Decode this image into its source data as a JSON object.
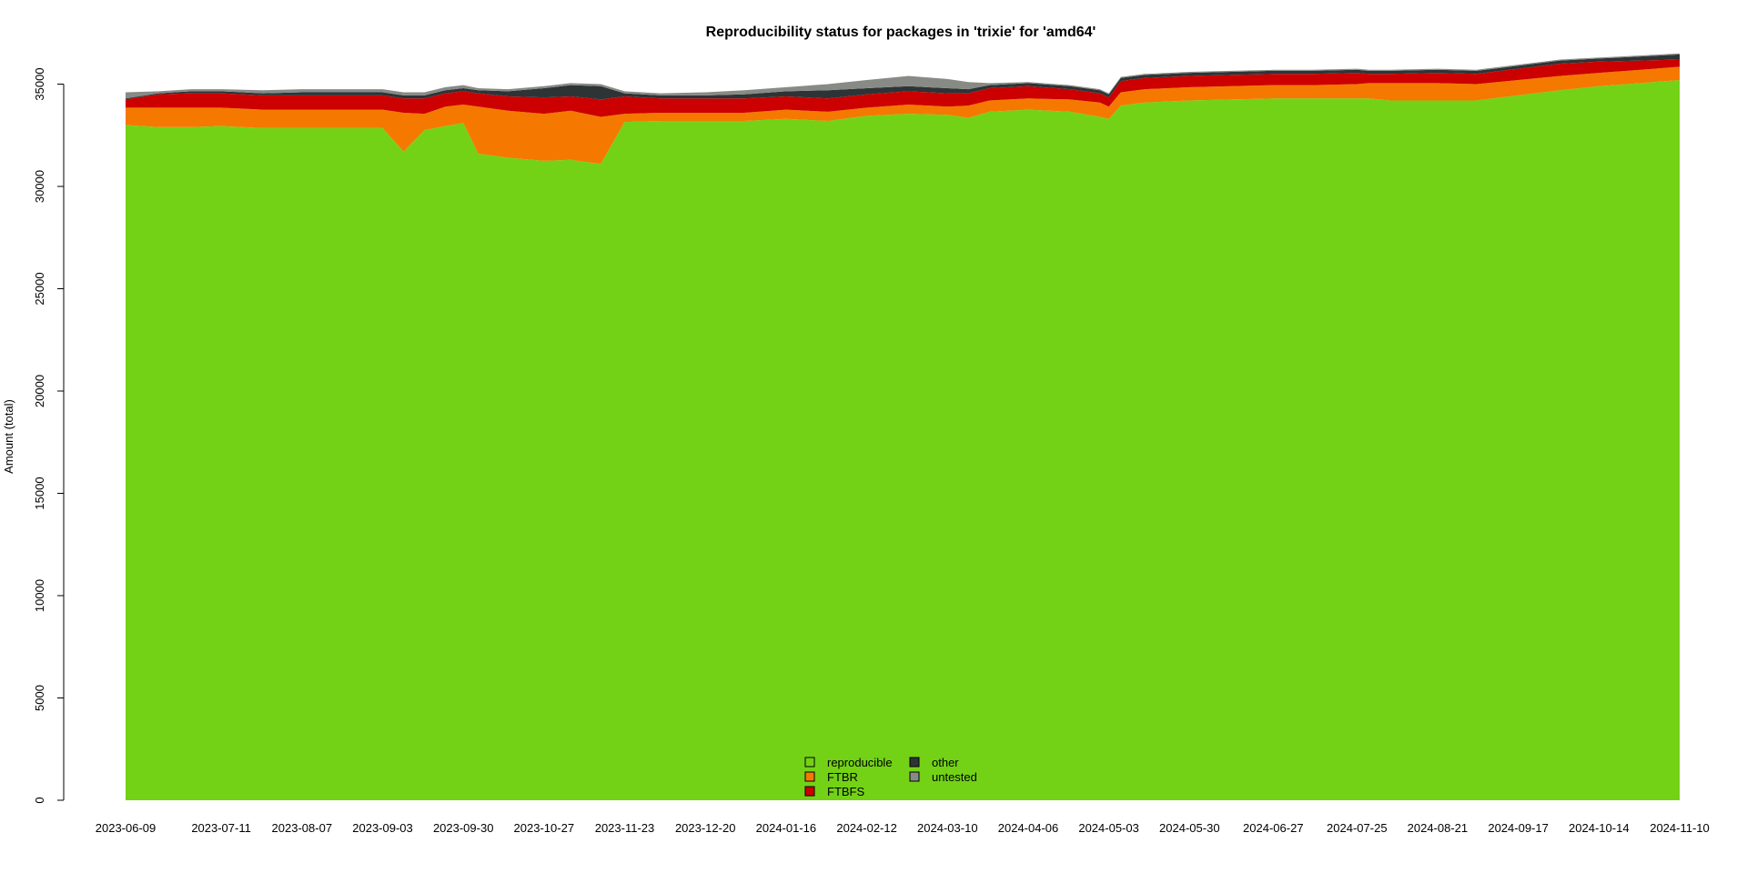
{
  "chart_data": {
    "type": "area",
    "stacked": true,
    "title": "Reproducibility status for packages in 'trixie' for 'amd64'",
    "xlabel": "",
    "ylabel": "Amount (total)",
    "ylim": [
      0,
      36000
    ],
    "yticks": [
      0,
      5000,
      10000,
      15000,
      20000,
      25000,
      30000,
      35000
    ],
    "xlim": [
      "2023-06-09",
      "2024-11-10"
    ],
    "xticks": [
      "2023-06-09",
      "2023-07-11",
      "2023-08-07",
      "2023-09-03",
      "2023-09-30",
      "2023-10-27",
      "2023-11-23",
      "2023-12-20",
      "2024-01-16",
      "2024-02-12",
      "2024-03-10",
      "2024-04-06",
      "2024-05-03",
      "2024-05-30",
      "2024-06-27",
      "2024-07-25",
      "2024-08-21",
      "2024-09-17",
      "2024-10-14",
      "2024-11-10"
    ],
    "grid": false,
    "legend_position": "bottom-center",
    "colors": {
      "reproducible": "#73d216",
      "FTBR": "#f57900",
      "FTBFS": "#cc0000",
      "other": "#2e3436",
      "untested": "#888a85"
    },
    "legend": [
      {
        "name": "reproducible",
        "color": "#73d216"
      },
      {
        "name": "FTBR",
        "color": "#f57900"
      },
      {
        "name": "FTBFS",
        "color": "#cc0000"
      },
      {
        "name": "other",
        "color": "#2e3436"
      },
      {
        "name": "untested",
        "color": "#888a85"
      }
    ],
    "x": [
      "2023-06-09",
      "2023-06-20",
      "2023-07-01",
      "2023-07-11",
      "2023-07-25",
      "2023-08-07",
      "2023-08-20",
      "2023-09-03",
      "2023-09-10",
      "2023-09-17",
      "2023-09-24",
      "2023-09-30",
      "2023-10-05",
      "2023-10-15",
      "2023-10-27",
      "2023-11-05",
      "2023-11-15",
      "2023-11-23",
      "2023-12-05",
      "2023-12-20",
      "2024-01-02",
      "2024-01-16",
      "2024-01-30",
      "2024-02-12",
      "2024-02-26",
      "2024-03-10",
      "2024-03-17",
      "2024-03-24",
      "2024-04-06",
      "2024-04-20",
      "2024-04-30",
      "2024-05-03",
      "2024-05-07",
      "2024-05-15",
      "2024-05-30",
      "2024-06-13",
      "2024-06-27",
      "2024-07-10",
      "2024-07-25",
      "2024-07-29",
      "2024-08-05",
      "2024-08-21",
      "2024-09-03",
      "2024-09-17",
      "2024-10-01",
      "2024-10-14",
      "2024-10-28",
      "2024-11-10"
    ],
    "series": [
      {
        "name": "reproducible",
        "values": [
          33000,
          32900,
          32900,
          32950,
          32850,
          32850,
          32850,
          32850,
          31700,
          32750,
          32950,
          33100,
          31600,
          31400,
          31250,
          31300,
          31100,
          33150,
          33200,
          33200,
          33200,
          33300,
          33200,
          33450,
          33550,
          33500,
          33350,
          33650,
          33750,
          33650,
          33400,
          33300,
          33950,
          34100,
          34200,
          34250,
          34300,
          34300,
          34300,
          34300,
          34200,
          34200,
          34200,
          34450,
          34700,
          34900,
          35050,
          35200
        ]
      },
      {
        "name": "FTBR",
        "values": [
          850,
          950,
          950,
          900,
          900,
          900,
          900,
          900,
          1900,
          800,
          950,
          900,
          2300,
          2300,
          2300,
          2400,
          2300,
          400,
          400,
          400,
          400,
          450,
          450,
          400,
          450,
          400,
          600,
          550,
          550,
          600,
          700,
          600,
          650,
          650,
          650,
          650,
          650,
          650,
          700,
          750,
          850,
          850,
          800,
          750,
          700,
          650,
          650,
          650
        ]
      },
      {
        "name": "FTBFS",
        "values": [
          400,
          650,
          700,
          700,
          700,
          700,
          700,
          700,
          700,
          750,
          650,
          650,
          650,
          700,
          800,
          700,
          850,
          850,
          700,
          700,
          700,
          650,
          650,
          650,
          650,
          650,
          600,
          600,
          600,
          500,
          450,
          450,
          550,
          550,
          550,
          550,
          550,
          550,
          550,
          450,
          450,
          500,
          500,
          550,
          600,
          550,
          450,
          350
        ]
      },
      {
        "name": "other",
        "values": [
          50,
          50,
          100,
          100,
          100,
          150,
          150,
          150,
          150,
          150,
          150,
          150,
          150,
          250,
          450,
          550,
          650,
          150,
          150,
          150,
          200,
          250,
          400,
          300,
          250,
          250,
          200,
          150,
          150,
          150,
          150,
          150,
          150,
          150,
          150,
          150,
          150,
          150,
          150,
          150,
          150,
          150,
          150,
          150,
          150,
          150,
          200,
          250
        ]
      },
      {
        "name": "untested",
        "values": [
          300,
          100,
          100,
          100,
          150,
          150,
          150,
          150,
          150,
          150,
          150,
          150,
          100,
          100,
          100,
          100,
          100,
          100,
          100,
          150,
          200,
          200,
          300,
          400,
          500,
          450,
          350,
          100,
          50,
          50,
          50,
          50,
          50,
          50,
          50,
          50,
          50,
          50,
          50,
          50,
          50,
          50,
          50,
          50,
          50,
          50,
          50,
          50
        ]
      }
    ]
  }
}
